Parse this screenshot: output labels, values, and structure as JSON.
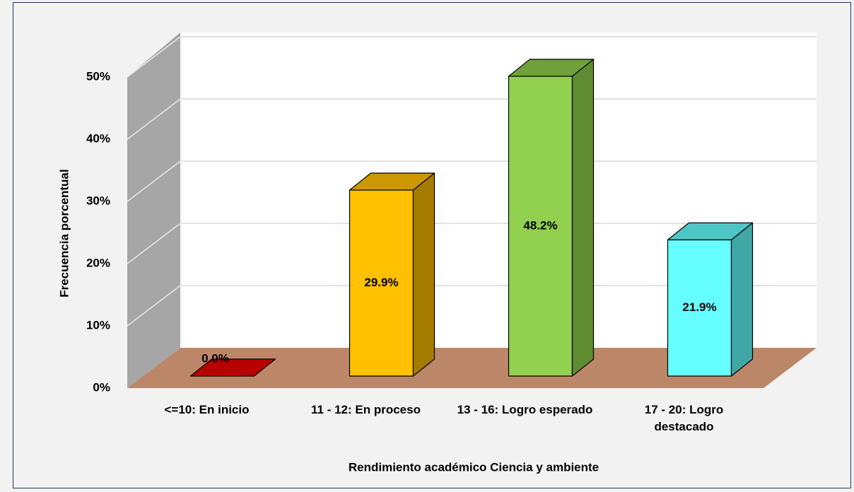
{
  "chart_data": {
    "type": "bar3d",
    "categories": [
      "<=10: En inicio",
      "11 - 12: En proceso",
      "13 - 16: Logro esperado",
      "17 - 20: Logro destacado"
    ],
    "values": [
      0.0,
      29.9,
      48.2,
      21.9
    ],
    "value_labels": [
      "0.0%",
      "29.9%",
      "48.2%",
      "21.9%"
    ],
    "colors": [
      "#c00000",
      "#ffc000",
      "#92d050",
      "#66ffff"
    ],
    "side_colors": [
      "#a00000",
      "#a67c00",
      "#5f8b31",
      "#40a6a6"
    ],
    "top_colors": [
      "#b80000",
      "#cc9700",
      "#70a03c",
      "#4fc6c6"
    ],
    "ylim": [
      0,
      50
    ],
    "yticks": [
      {
        "value": 0,
        "label": "0%"
      },
      {
        "value": 10,
        "label": "10%"
      },
      {
        "value": 20,
        "label": "20%"
      },
      {
        "value": 30,
        "label": "30%"
      },
      {
        "value": 40,
        "label": "40%"
      },
      {
        "value": 50,
        "label": "50%"
      }
    ],
    "ylabel": "Frecuencia porcentual",
    "xlabel": "Rendimiento académico Ciencia  y ambiente",
    "grid": true
  }
}
